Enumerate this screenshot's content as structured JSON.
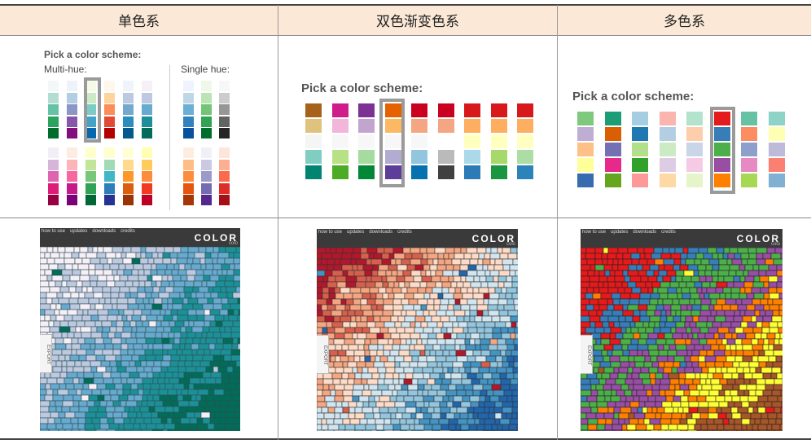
{
  "headers": [
    "单色系",
    "双色渐变色系",
    "多色系"
  ],
  "single": {
    "title": "Pick a color scheme:",
    "multi_label": "Multi-hue:",
    "single_label": "Single hue:",
    "multi_top": [
      [
        "#f2f7f7",
        "#b3ddd3",
        "#66c2a4",
        "#2ca25f",
        "#006d2c"
      ],
      [
        "#eef2f9",
        "#b3cde3",
        "#8c96c6",
        "#8856a7",
        "#810f7c"
      ],
      [
        "#f4fae6",
        "#ccebc5",
        "#7bccc4",
        "#43a2ca",
        "#0868ac"
      ],
      [
        "#fff7ec",
        "#fdd49e",
        "#fc8d59",
        "#e34a33",
        "#b30000"
      ],
      [
        "#eef4fa",
        "#bdc9e1",
        "#74a9cf",
        "#2b8cbe",
        "#045a8d"
      ],
      [
        "#f6eff7",
        "#bdc9e1",
        "#67a9cf",
        "#1c9099",
        "#016c59"
      ]
    ],
    "multi_bottom": [
      [
        "#f1eef6",
        "#d7b5d8",
        "#df65b0",
        "#dd1c77",
        "#980043"
      ],
      [
        "#feebe2",
        "#fbb4b9",
        "#f768a1",
        "#c51b8a",
        "#7a0177"
      ],
      [
        "#ffffcc",
        "#c2e699",
        "#78c679",
        "#31a354",
        "#006837"
      ],
      [
        "#ffffcc",
        "#a1dab4",
        "#41b6c4",
        "#2c7fb8",
        "#253494"
      ],
      [
        "#ffffd4",
        "#fed98e",
        "#fe9929",
        "#d95f0e",
        "#993404"
      ],
      [
        "#ffffb2",
        "#fecc5c",
        "#fd8d3c",
        "#f03b20",
        "#bd0026"
      ]
    ],
    "single_top": [
      [
        "#eff3ff",
        "#bdd7e7",
        "#6baed6",
        "#3182bd",
        "#08519c"
      ],
      [
        "#edf8e9",
        "#bae4b3",
        "#74c476",
        "#31a354",
        "#006d2c"
      ],
      [
        "#f7f7f7",
        "#cccccc",
        "#969696",
        "#636363",
        "#252525"
      ]
    ],
    "single_bottom": [
      [
        "#feedde",
        "#fdbe85",
        "#fd8d3c",
        "#e6550d",
        "#a63603"
      ],
      [
        "#f2f0f7",
        "#cbc9e2",
        "#9e9ac8",
        "#756bb1",
        "#54278f"
      ],
      [
        "#fee5d9",
        "#fcae91",
        "#fb6a4a",
        "#de2d26",
        "#a50f15"
      ]
    ]
  },
  "diverging": {
    "title": "Pick a color scheme:",
    "schemes": [
      [
        "#a6611a",
        "#dfc27d",
        "#f5f5f5",
        "#80cdc1",
        "#018571"
      ],
      [
        "#d01c8b",
        "#f1b6da",
        "#f7f7f7",
        "#b8e186",
        "#4dac26"
      ],
      [
        "#7b3294",
        "#c2a5cf",
        "#f7f7f7",
        "#a6dba0",
        "#008837"
      ],
      [
        "#e66101",
        "#fdb863",
        "#f7f7f7",
        "#b2abd2",
        "#5e3c99"
      ],
      [
        "#ca0020",
        "#f4a582",
        "#f7f7f7",
        "#92c5de",
        "#0571b0"
      ],
      [
        "#ca0020",
        "#f4a582",
        "#ffffff",
        "#bababa",
        "#404040"
      ],
      [
        "#d7191c",
        "#fdae61",
        "#ffffbf",
        "#abd9e9",
        "#2c7bb6"
      ],
      [
        "#d7191c",
        "#fdae61",
        "#ffffbf",
        "#a6d96a",
        "#1a9641"
      ],
      [
        "#d7191c",
        "#fdae61",
        "#ffffbf",
        "#abdda4",
        "#2b83ba"
      ]
    ]
  },
  "qualitative": {
    "title": "Pick a color scheme:",
    "schemes": [
      [
        "#7fc97f",
        "#beaed4",
        "#fdc086",
        "#ffff99",
        "#386cb0"
      ],
      [
        "#1b9e77",
        "#d95f02",
        "#7570b3",
        "#e7298a",
        "#66a61e"
      ],
      [
        "#a6cee3",
        "#1f78b4",
        "#b2df8a",
        "#33a02c",
        "#fb9a99"
      ],
      [
        "#fbb4ae",
        "#b3cde3",
        "#ccebc5",
        "#decbe4",
        "#fed9a6"
      ],
      [
        "#b3e2cd",
        "#fdcdac",
        "#cbd5e8",
        "#f4cae4",
        "#e6f5c9"
      ],
      [
        "#e41a1c",
        "#377eb8",
        "#4daf4a",
        "#984ea3",
        "#ff7f00"
      ],
      [
        "#66c2a5",
        "#fc8d62",
        "#8da0cb",
        "#e78ac3",
        "#a6d854"
      ],
      [
        "#8dd3c7",
        "#ffffb3",
        "#bebada",
        "#fb8072",
        "#80b1d3"
      ]
    ]
  },
  "map_ui": {
    "nav": [
      "how to use",
      "updates",
      "downloads",
      "credits"
    ],
    "logo": "COLOR",
    "logo_sub": "colo",
    "export_label": "EXPORT"
  }
}
